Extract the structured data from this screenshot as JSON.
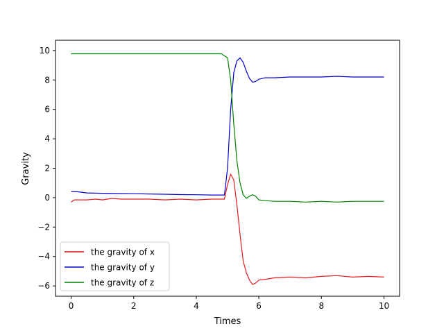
{
  "chart_data": {
    "type": "line",
    "title": "",
    "xlabel": "Times",
    "ylabel": "Gravity",
    "xlim": [
      -0.5,
      10.5
    ],
    "ylim": [
      -6.7,
      10.7
    ],
    "xticks": [
      0,
      2,
      4,
      6,
      8,
      10
    ],
    "xtick_labels": [
      "0",
      "2",
      "4",
      "6",
      "8",
      "10"
    ],
    "yticks": [
      -6,
      -4,
      -2,
      0,
      2,
      4,
      6,
      8,
      10
    ],
    "ytick_labels": [
      "−6",
      "−4",
      "−2",
      "0",
      "2",
      "4",
      "6",
      "8",
      "10"
    ],
    "grid": false,
    "legend_position": "lower-left",
    "series": [
      {
        "name": "the gravity of x",
        "color": "#e41a1c",
        "x": [
          0,
          0.1,
          0.3,
          0.5,
          0.8,
          1.0,
          1.3,
          1.6,
          2.0,
          2.5,
          3.0,
          3.5,
          4.0,
          4.5,
          4.9,
          5.0,
          5.1,
          5.2,
          5.3,
          5.4,
          5.5,
          5.6,
          5.7,
          5.8,
          5.9,
          6.0,
          6.2,
          6.5,
          7.0,
          7.5,
          8.0,
          8.5,
          9.0,
          9.5,
          10.0
        ],
        "y": [
          -0.3,
          -0.15,
          -0.15,
          -0.15,
          -0.1,
          -0.15,
          -0.05,
          -0.1,
          -0.1,
          -0.1,
          -0.15,
          -0.1,
          -0.15,
          -0.1,
          -0.1,
          0.9,
          1.6,
          1.2,
          -0.5,
          -2.5,
          -4.3,
          -5.1,
          -5.6,
          -5.9,
          -5.8,
          -5.6,
          -5.55,
          -5.45,
          -5.4,
          -5.45,
          -5.35,
          -5.3,
          -5.4,
          -5.35,
          -5.4
        ]
      },
      {
        "name": "the gravity of y",
        "color": "#0000cc",
        "x": [
          0,
          0.2,
          0.5,
          1.0,
          1.5,
          2.0,
          2.5,
          3.0,
          3.5,
          4.0,
          4.5,
          4.9,
          5.0,
          5.1,
          5.2,
          5.3,
          5.4,
          5.5,
          5.6,
          5.7,
          5.8,
          5.9,
          6.0,
          6.2,
          6.5,
          7.0,
          7.5,
          8.0,
          8.5,
          9.0,
          9.5,
          10.0
        ],
        "y": [
          0.42,
          0.4,
          0.32,
          0.3,
          0.28,
          0.27,
          0.25,
          0.23,
          0.21,
          0.2,
          0.18,
          0.18,
          2.0,
          6.0,
          8.5,
          9.3,
          9.5,
          9.2,
          8.6,
          8.1,
          7.85,
          7.9,
          8.05,
          8.15,
          8.15,
          8.2,
          8.2,
          8.2,
          8.25,
          8.2,
          8.2,
          8.2
        ]
      },
      {
        "name": "the gravity of z",
        "color": "#008000",
        "x": [
          0,
          1.0,
          2.0,
          3.0,
          4.0,
          4.8,
          5.0,
          5.1,
          5.2,
          5.3,
          5.4,
          5.5,
          5.6,
          5.7,
          5.8,
          5.9,
          6.0,
          6.2,
          6.5,
          7.0,
          7.5,
          8.0,
          8.5,
          9.0,
          9.5,
          10.0
        ],
        "y": [
          9.78,
          9.78,
          9.78,
          9.78,
          9.78,
          9.78,
          9.5,
          8.0,
          5.0,
          2.5,
          1.0,
          0.2,
          -0.05,
          0.1,
          0.2,
          0.1,
          -0.15,
          -0.2,
          -0.25,
          -0.25,
          -0.3,
          -0.25,
          -0.3,
          -0.25,
          -0.25,
          -0.25
        ]
      }
    ]
  }
}
